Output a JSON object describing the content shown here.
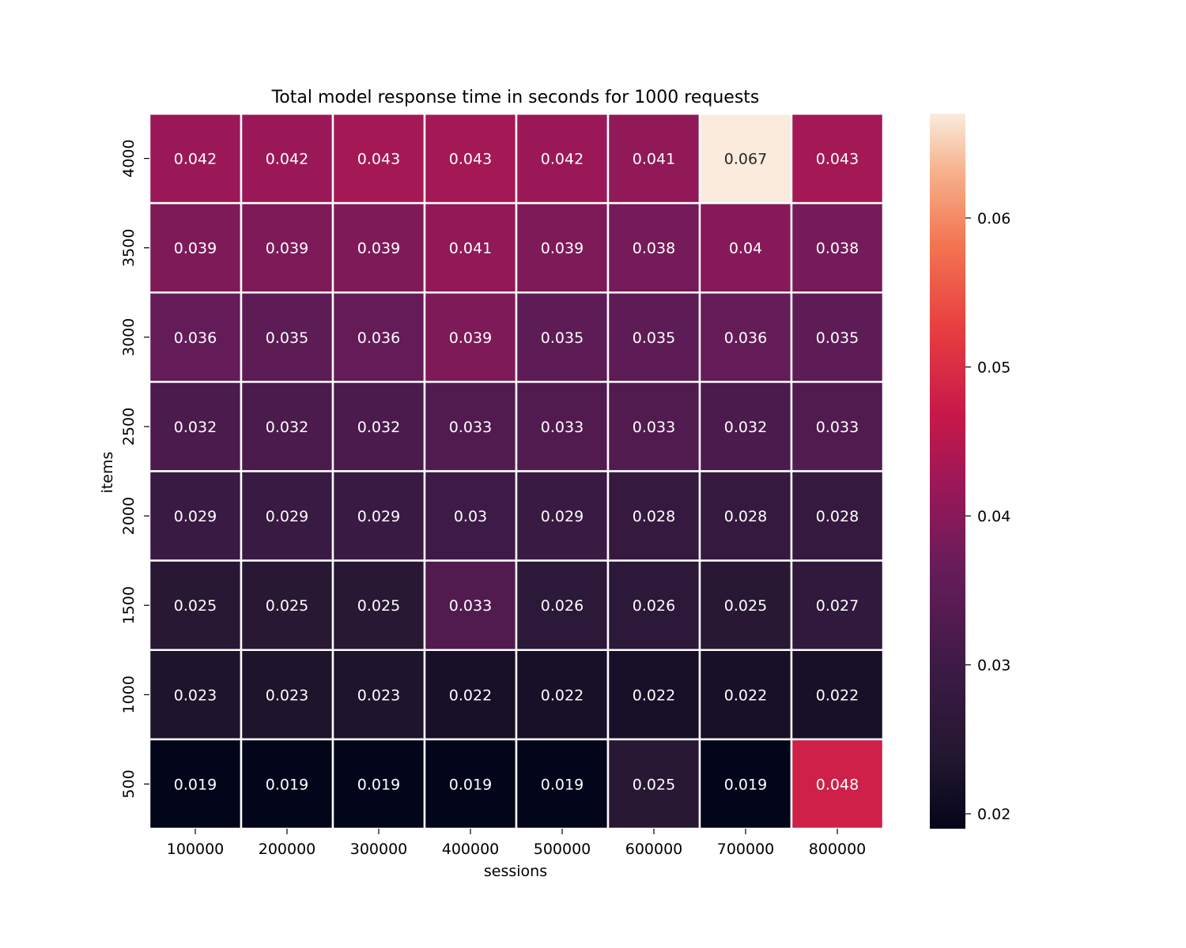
{
  "chart_data": {
    "type": "heatmap",
    "title": "Total model response time in seconds for 1000 requests",
    "xlabel": "sessions",
    "ylabel": "items",
    "x_categories": [
      "100000",
      "200000",
      "300000",
      "400000",
      "500000",
      "600000",
      "700000",
      "800000"
    ],
    "y_categories": [
      "4000",
      "3500",
      "3000",
      "2500",
      "2000",
      "1500",
      "1000",
      "500"
    ],
    "values": [
      [
        0.042,
        0.042,
        0.043,
        0.043,
        0.042,
        0.041,
        0.067,
        0.043
      ],
      [
        0.039,
        0.039,
        0.039,
        0.041,
        0.039,
        0.038,
        0.04,
        0.038
      ],
      [
        0.036,
        0.035,
        0.036,
        0.039,
        0.035,
        0.035,
        0.036,
        0.035
      ],
      [
        0.032,
        0.032,
        0.032,
        0.033,
        0.033,
        0.033,
        0.032,
        0.033
      ],
      [
        0.029,
        0.029,
        0.029,
        0.03,
        0.029,
        0.028,
        0.028,
        0.028
      ],
      [
        0.025,
        0.025,
        0.025,
        0.033,
        0.026,
        0.026,
        0.025,
        0.027
      ],
      [
        0.023,
        0.023,
        0.023,
        0.022,
        0.022,
        0.022,
        0.022,
        0.022
      ],
      [
        0.019,
        0.019,
        0.019,
        0.019,
        0.019,
        0.025,
        0.019,
        0.048
      ]
    ],
    "colorbar": {
      "range": [
        0.019,
        0.067
      ],
      "ticks": [
        0.02,
        0.03,
        0.04,
        0.05,
        0.06
      ],
      "tick_labels": [
        "0.02",
        "0.03",
        "0.04",
        "0.05",
        "0.06"
      ],
      "colormap": "rocket"
    },
    "grid": false
  }
}
